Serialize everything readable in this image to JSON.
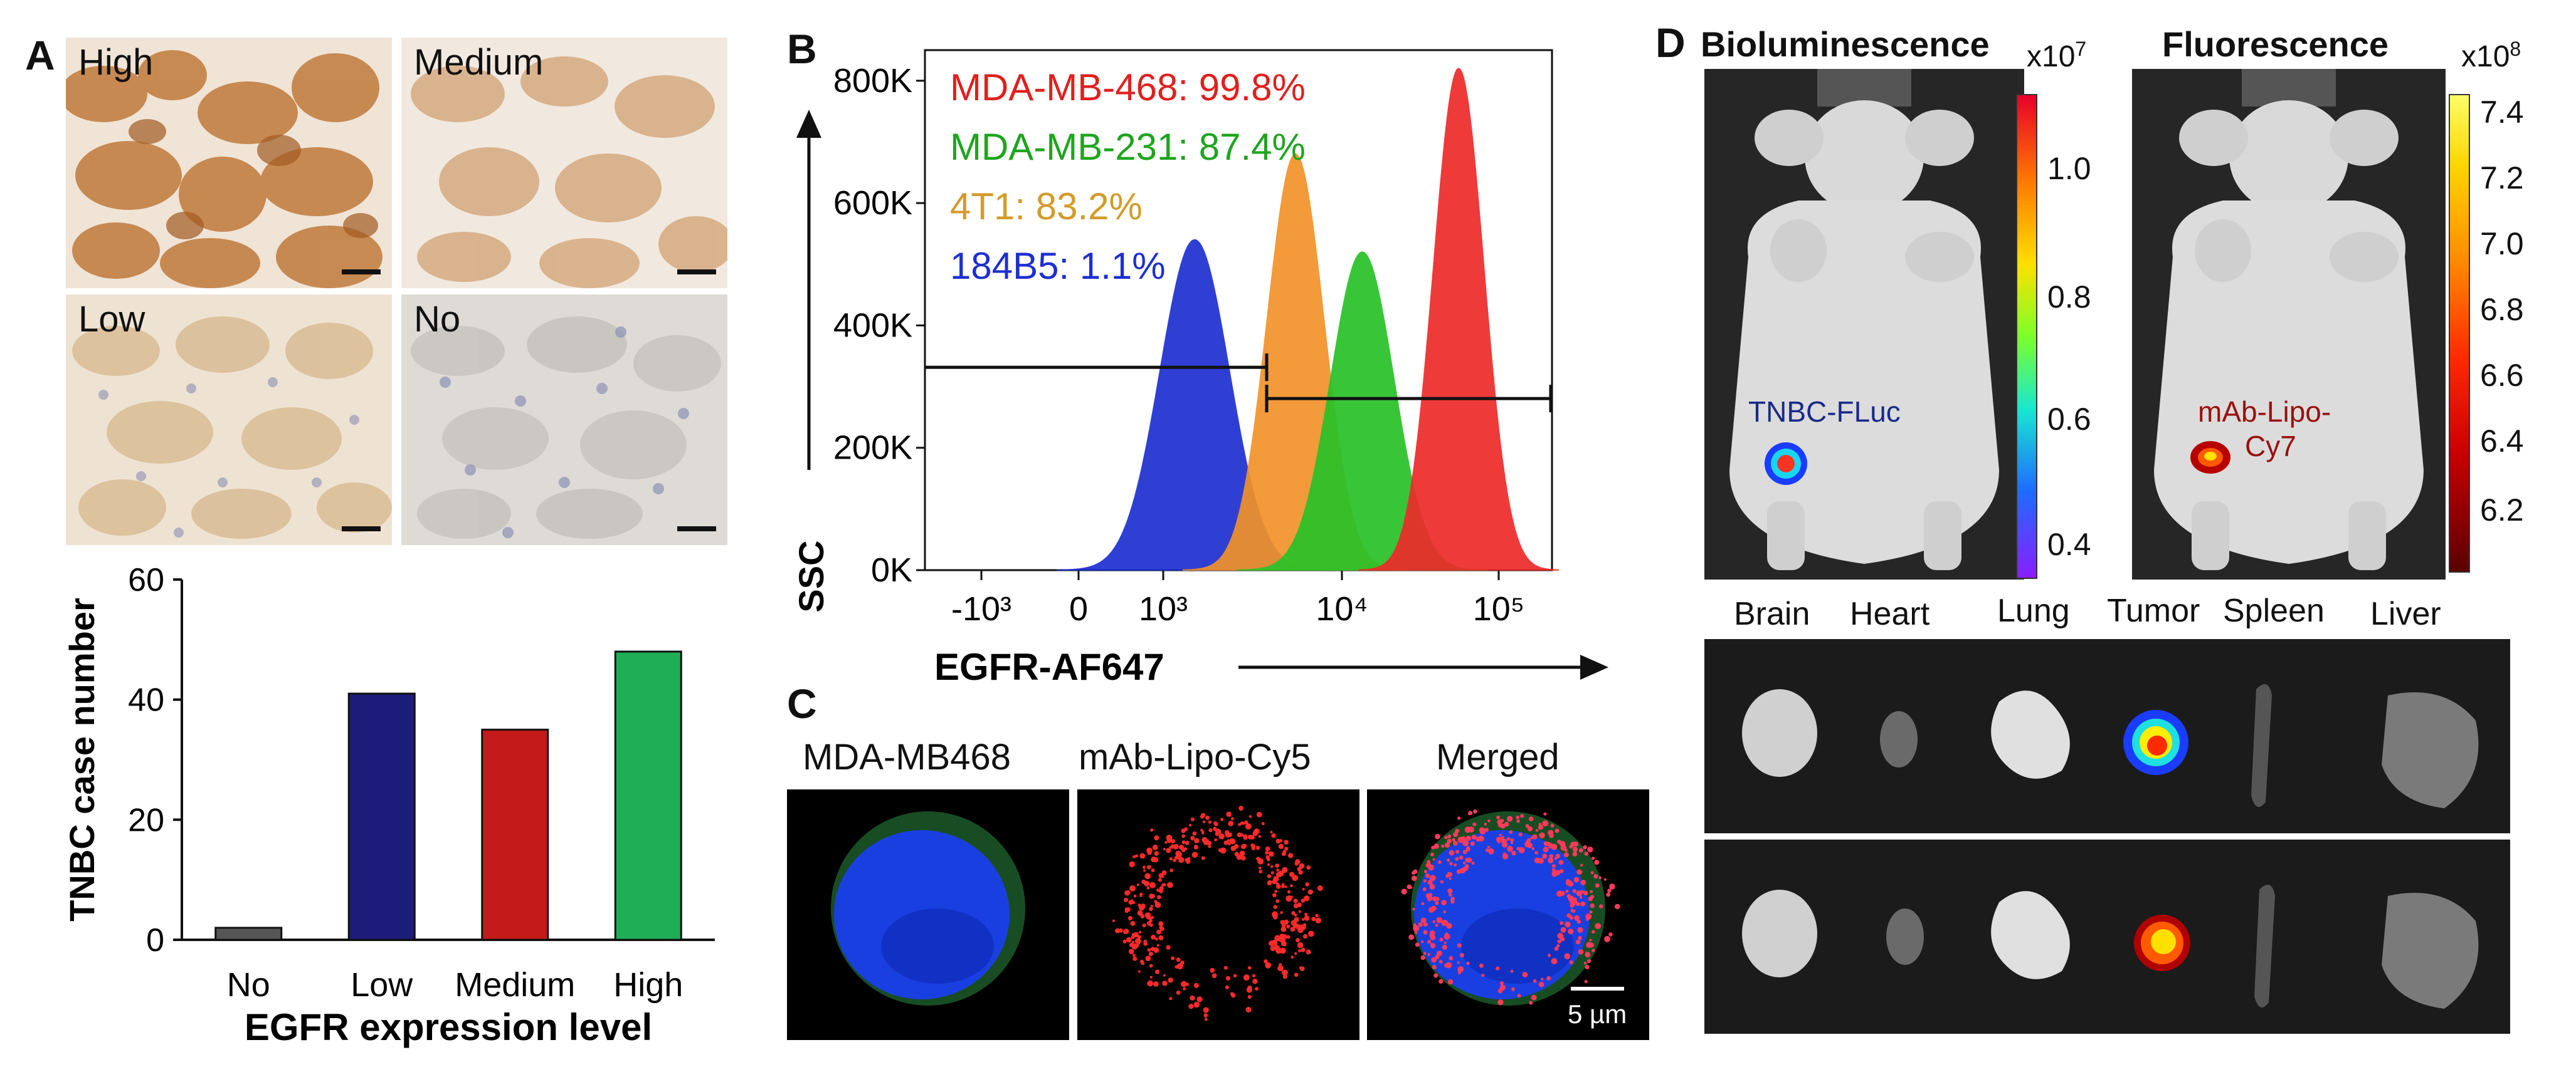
{
  "panel_a": {
    "label": "A",
    "ihc_tiles": [
      {
        "label": "High",
        "tone": "#c8915a"
      },
      {
        "label": "Medium",
        "tone": "#d9b48d"
      },
      {
        "label": "Low",
        "tone": "#d6c0a0"
      },
      {
        "label": "No",
        "tone": "#c9c6c2"
      }
    ]
  },
  "panel_b": {
    "label": "B",
    "legend": [
      {
        "text": "MDA-MB-468: 99.8%",
        "color": "#e0201e"
      },
      {
        "text": "MDA-MB-231: 87.4%",
        "color": "#1ea51e"
      },
      {
        "text": "4T1: 83.2%",
        "color": "#d39b2a"
      },
      {
        "text": "184B5: 1.1%",
        "color": "#1e2fd0"
      }
    ]
  },
  "panel_c": {
    "label": "C",
    "titles": [
      "MDA-MB468",
      "mAb-Lipo-Cy5",
      "Merged"
    ],
    "scalebar": "5 µm"
  },
  "panel_d": {
    "label": "D",
    "biolum": {
      "title": "Bioluminescence",
      "exponent": "x10",
      "exp_power": "7",
      "ticks": [
        "1.0",
        "0.8",
        "0.6",
        "0.4"
      ],
      "overlay": "TNBC-FLuc"
    },
    "fluor": {
      "title": "Fluorescence",
      "exponent": "x10",
      "exp_power": "8",
      "ticks": [
        "7.4",
        "7.2",
        "7.0",
        "6.8",
        "6.6",
        "6.4",
        "6.2"
      ],
      "overlay_1": "mAb-Lipo-",
      "overlay_2": "Cy7"
    },
    "organs": [
      "Brain",
      "Heart",
      "Lung",
      "Tumor",
      "Spleen",
      "Liver"
    ]
  },
  "chart_data": [
    {
      "type": "bar",
      "categories": [
        "No",
        "Low",
        "Medium",
        "High"
      ],
      "values": [
        2,
        41,
        35,
        48
      ],
      "colors": [
        "#555555",
        "#1c1c7a",
        "#c41a1a",
        "#1fae55"
      ],
      "xlabel": "EGFR expression level",
      "ylabel": "TNBC case number",
      "ylim": [
        0,
        60
      ],
      "yticks": [
        0,
        20,
        40,
        60
      ],
      "grid": false
    },
    {
      "type": "area",
      "xlabel": "EGFR-AF647",
      "ylabel": "SSC",
      "xscale": "biexponential",
      "xtick_labels": [
        "-10³",
        "0",
        "10³",
        "10⁴",
        "10⁵"
      ],
      "ytick_labels": [
        "0K",
        "200K",
        "400K",
        "600K",
        "800K"
      ],
      "ylim": [
        0,
        850000
      ],
      "series": [
        {
          "name": "184B5",
          "color": "#1e2fd0",
          "peak_x": 1500,
          "peak_y": 540000
        },
        {
          "name": "4T1",
          "color": "#f2922a",
          "peak_x": 5500,
          "peak_y": 680000
        },
        {
          "name": "MDA-MB-231",
          "color": "#28c228",
          "peak_x": 13000,
          "peak_y": 520000
        },
        {
          "name": "MDA-MB-468",
          "color": "#ee2a2a",
          "peak_x": 45000,
          "peak_y": 820000
        }
      ]
    }
  ]
}
